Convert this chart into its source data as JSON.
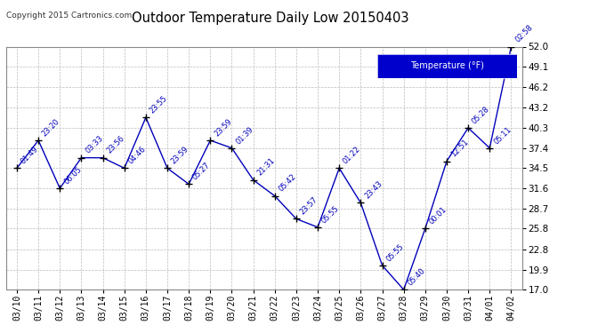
{
  "title": "Outdoor Temperature Daily Low 20150403",
  "copyright": "Copyright 2015 Cartronics.com",
  "legend_label": "Temperature (°F)",
  "line_color": "#0000bb",
  "marker_color": "#000000",
  "background_color": "#ffffff",
  "grid_color": "#bbbbbb",
  "border_color": "#888888",
  "ylim": [
    17.0,
    52.0
  ],
  "yticks": [
    17.0,
    19.9,
    22.8,
    25.8,
    28.7,
    31.6,
    34.5,
    37.4,
    40.3,
    43.2,
    46.2,
    49.1,
    52.0
  ],
  "dates": [
    "03/10",
    "03/11",
    "03/12",
    "03/13",
    "03/14",
    "03/15",
    "03/16",
    "03/17",
    "03/18",
    "03/19",
    "03/20",
    "03/21",
    "03/22",
    "03/23",
    "03/24",
    "03/25",
    "03/26",
    "03/27",
    "03/28",
    "03/29",
    "03/30",
    "03/31",
    "04/01",
    "04/02"
  ],
  "values": [
    34.5,
    38.5,
    31.6,
    36.0,
    36.0,
    34.5,
    41.8,
    34.5,
    32.2,
    38.5,
    37.4,
    32.8,
    30.5,
    27.2,
    26.0,
    34.5,
    29.5,
    20.5,
    17.0,
    25.8,
    35.5,
    40.3,
    37.4,
    52.0
  ],
  "annotations": [
    "01:49",
    "23:20",
    "06:05",
    "03:33",
    "23:56",
    "04:46",
    "23:55",
    "23:59",
    "05:27",
    "23:59",
    "01:39",
    "21:31",
    "05:42",
    "23:57",
    "05:55",
    "01:22",
    "23:43",
    "05:55",
    "05:40",
    "00:01",
    "12:51",
    "05:28",
    "05:11",
    "02:58"
  ]
}
